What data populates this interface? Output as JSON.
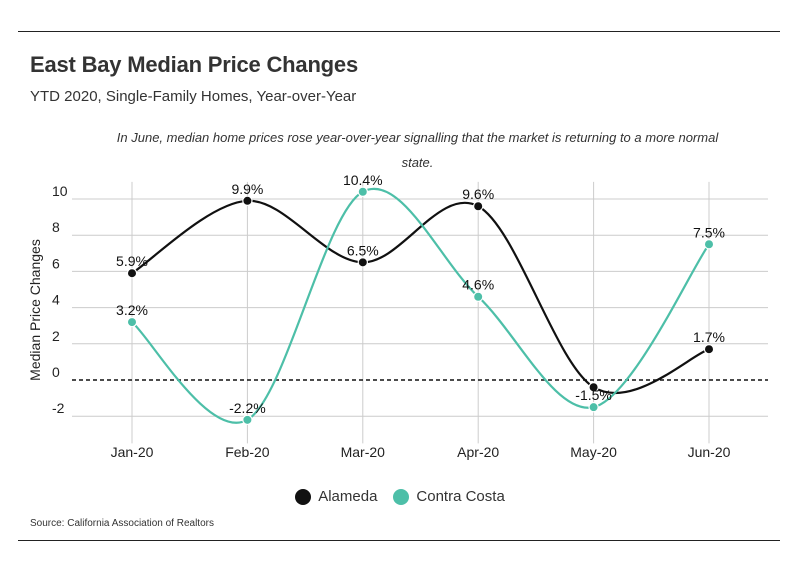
{
  "header": {
    "title": "East Bay Median Price Changes",
    "subtitle": "YTD 2020, Single-Family Homes, Year-over-Year"
  },
  "annotation": "In June, median home prices rose year-over-year signalling that the market is returning to a more normal state.",
  "source": "Source:  California Association of Realtors",
  "colors": {
    "alameda": "#111111",
    "contra_costa": "#4dbfa8",
    "grid": "#cccccc"
  },
  "chart_data": {
    "type": "line",
    "title": "East Bay Median Price Changes",
    "subtitle": "YTD 2020, Single-Family Homes, Year-over-Year",
    "xlabel": "",
    "ylabel": "Median Price Changes",
    "categories": [
      "Jan-20",
      "Feb-20",
      "Mar-20",
      "Apr-20",
      "May-20",
      "Jun-20"
    ],
    "yticks": [
      -2,
      0,
      2,
      4,
      6,
      8,
      10
    ],
    "ylim": [
      -3.5,
      11
    ],
    "grid": true,
    "legend_position": "bottom",
    "series": [
      {
        "name": "Alameda",
        "values": [
          5.9,
          9.9,
          6.5,
          9.6,
          -0.4,
          1.7
        ],
        "labels": [
          "5.9%",
          "9.9%",
          "6.5%",
          "9.6%",
          "",
          "1.7%"
        ]
      },
      {
        "name": "Contra Costa",
        "values": [
          3.2,
          -2.2,
          10.4,
          4.6,
          -1.5,
          7.5
        ],
        "labels": [
          "3.2%",
          "-2.2%",
          "10.4%",
          "4.6%",
          "-1.5%",
          "7.5%"
        ]
      }
    ]
  }
}
